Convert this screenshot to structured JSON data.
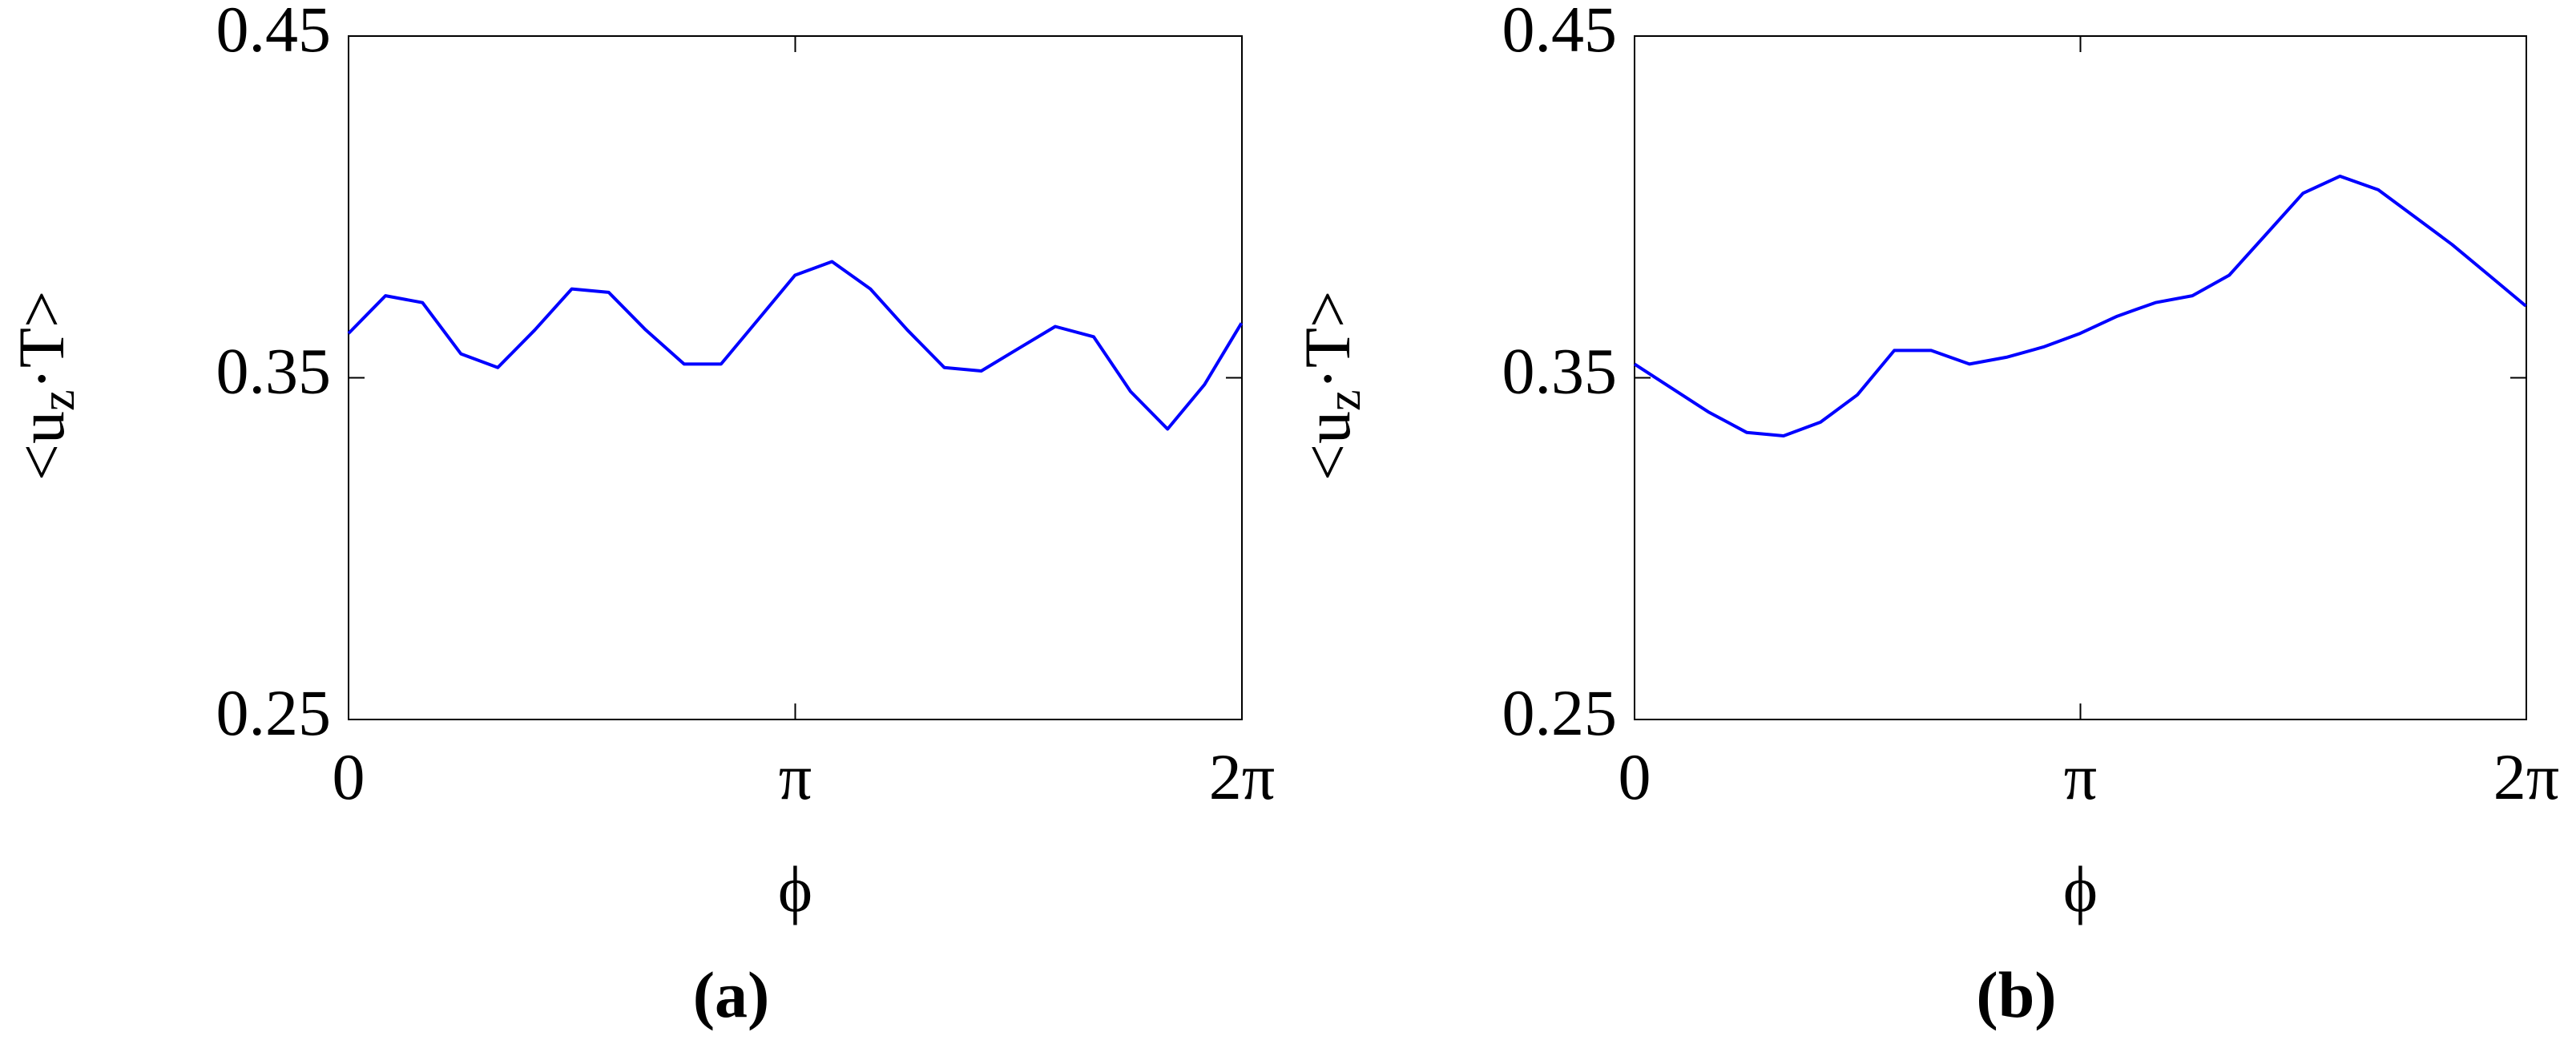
{
  "chart_data": [
    {
      "type": "line",
      "caption": "(a)",
      "xlabel": "ϕ",
      "ylabel": [
        "<u",
        "z",
        "·T>"
      ],
      "x": [
        0,
        0.26,
        0.52,
        0.79,
        1.05,
        1.31,
        1.57,
        1.83,
        2.09,
        2.36,
        2.62,
        2.88,
        3.14,
        3.4,
        3.67,
        3.93,
        4.19,
        4.45,
        4.71,
        4.97,
        5.24,
        5.5,
        5.76,
        6.02,
        6.28
      ],
      "series": [
        {
          "color": "#0000ff",
          "values": [
            0.363,
            0.374,
            0.372,
            0.357,
            0.353,
            0.364,
            0.376,
            0.375,
            0.364,
            0.354,
            0.354,
            0.367,
            0.38,
            0.384,
            0.376,
            0.364,
            0.353,
            0.352,
            0.3585,
            0.365,
            0.362,
            0.346,
            0.335,
            0.348,
            0.366
          ]
        }
      ],
      "xlim": [
        0,
        6.2832
      ],
      "ylim": [
        0.25,
        0.45
      ],
      "xticks": [
        0,
        {
          "value": 3.1416,
          "label": "π"
        },
        {
          "value": 6.2832,
          "label": "2π"
        }
      ],
      "yticks": [
        0.25,
        0.35,
        0.45
      ]
    },
    {
      "type": "line",
      "caption": "(b)",
      "xlabel": "ϕ",
      "ylabel": [
        "<u",
        "z",
        "·T>"
      ],
      "x": [
        0,
        0.26,
        0.52,
        0.79,
        1.05,
        1.31,
        1.57,
        1.83,
        2.09,
        2.36,
        2.62,
        2.88,
        3.14,
        3.4,
        3.67,
        3.93,
        4.19,
        4.45,
        4.71,
        4.97,
        5.24,
        5.5,
        5.76,
        6.02,
        6.28
      ],
      "series": [
        {
          "color": "#0000ff",
          "values": [
            0.354,
            0.347,
            0.34,
            0.334,
            0.333,
            0.337,
            0.345,
            0.358,
            0.358,
            0.354,
            0.356,
            0.359,
            0.363,
            0.368,
            0.372,
            0.374,
            0.38,
            0.392,
            0.404,
            0.409,
            0.405,
            0.397,
            0.389,
            0.38,
            0.371
          ]
        }
      ],
      "xlim": [
        0,
        6.2832
      ],
      "ylim": [
        0.25,
        0.45
      ],
      "xticks": [
        0,
        {
          "value": 3.1416,
          "label": "π"
        },
        {
          "value": 6.2832,
          "label": "2π"
        }
      ],
      "yticks": [
        0.25,
        0.35,
        0.45
      ]
    }
  ]
}
